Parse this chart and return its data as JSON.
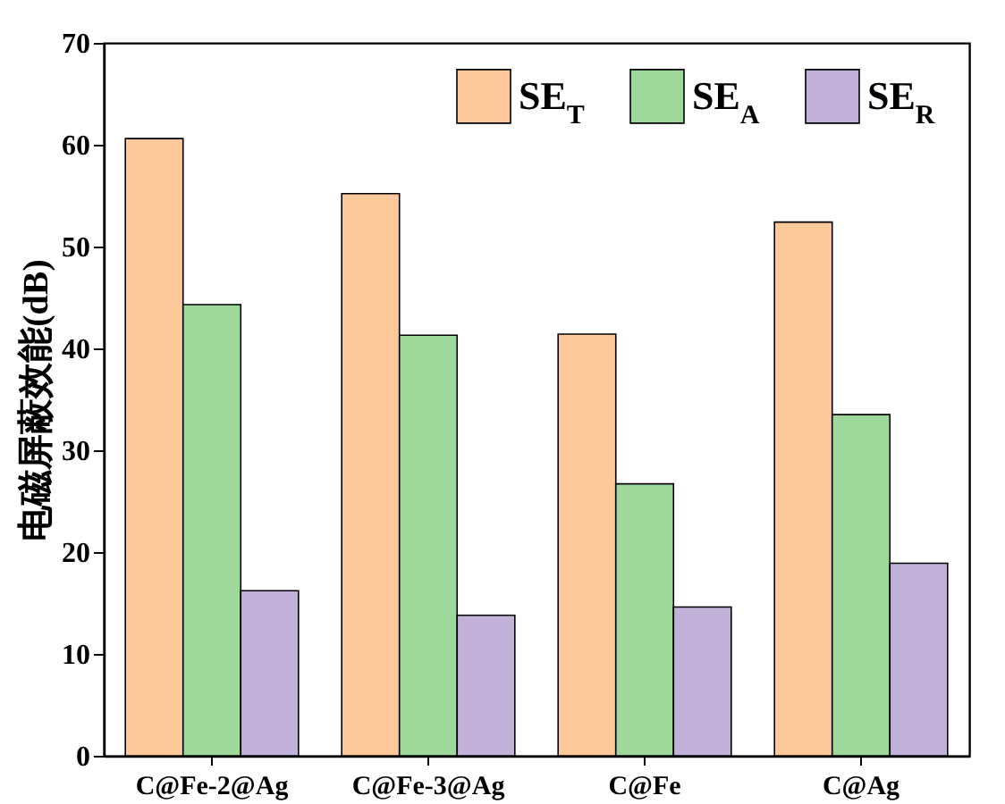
{
  "chart_data": {
    "type": "bar",
    "ylabel": "电磁屏蔽效能(dB)",
    "categories": [
      "C@Fe-2@Ag",
      "C@Fe-3@Ag",
      "C@Fe",
      "C@Ag"
    ],
    "series": [
      {
        "name": "SE$_{T}$",
        "color": "#fdc99a",
        "values": [
          60.6,
          55.2,
          41.4,
          52.4
        ]
      },
      {
        "name": "SE$_{A}$",
        "color": "#9ed89b",
        "values": [
          44.3,
          41.3,
          26.7,
          33.5
        ]
      },
      {
        "name": "SE$_{R}$",
        "color": "#c2b1d9",
        "values": [
          16.2,
          13.8,
          14.6,
          18.9
        ]
      }
    ],
    "ylim": [
      0,
      70
    ],
    "yticks": [
      0,
      10,
      20,
      30,
      40,
      50,
      60,
      70
    ],
    "legend": "top right"
  }
}
